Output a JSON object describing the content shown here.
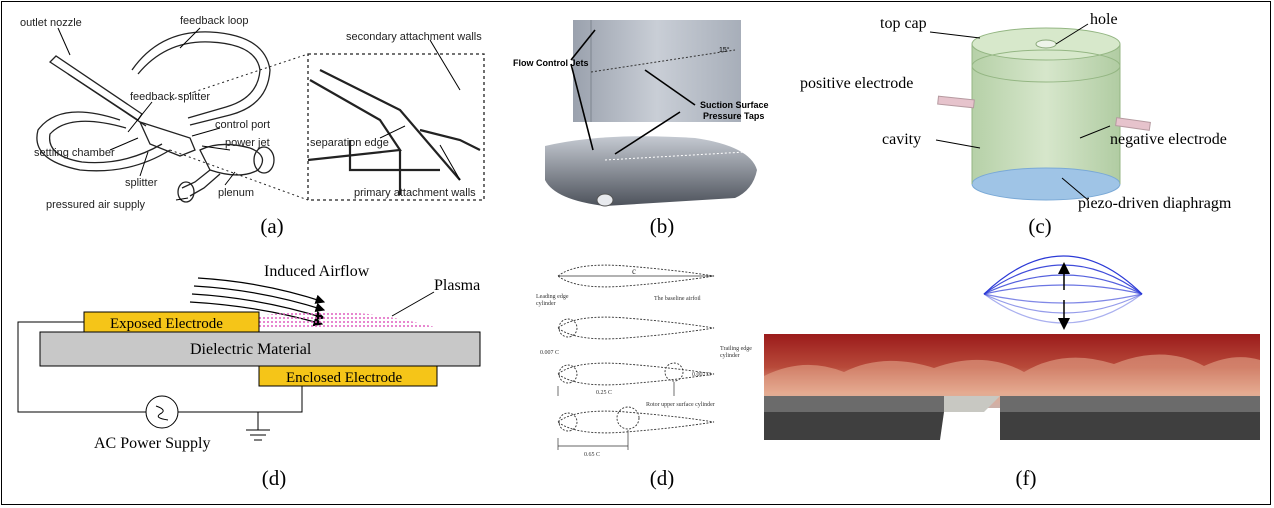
{
  "colors": {
    "electrode": "#f5c518",
    "dielectric": "#c8c8c8",
    "plasma": "#e060c0",
    "cylinder": "#b9d3a8",
    "diaphragm": "#9fc4e6",
    "flow_red": "#9b1b1b",
    "flow_light": "#e8b39a",
    "waveform": "#2b39d6",
    "wall": "#555555"
  },
  "panels": {
    "a": {
      "caption": "(a)",
      "labels": {
        "outlet_nozzle": "outlet nozzle",
        "feedback_loop": "feedback loop",
        "feedback_splitter": "feedback splitter",
        "control_port": "control port",
        "settling_chamber": "settling chamber",
        "power_jet": "power jet",
        "splitter": "splitter",
        "plenum": "plenum",
        "pressured_air_supply": "pressured air supply",
        "secondary_attachment_walls": "secondary attachment walls",
        "separation_edge": "separation edge",
        "primary_attachment_walls": "primary attachment walls"
      }
    },
    "b": {
      "caption": "(b)",
      "labels": {
        "flow_control_jets": "Flow Control Jets",
        "suction_surface_1": "Suction Surface",
        "suction_surface_2": "Pressure Taps",
        "angle": "15°"
      }
    },
    "c": {
      "caption": "(c)",
      "labels": {
        "top_cap": "top cap",
        "hole": "hole",
        "positive_electrode": "positive electrode",
        "negative_electrode": "negative electrode",
        "cavity": "cavity",
        "diaphragm": "piezo-driven diaphragm"
      }
    },
    "d1": {
      "caption": "(d)",
      "labels": {
        "induced_airflow": "Induced Airflow",
        "plasma": "Plasma",
        "exposed_electrode": "Exposed Electrode",
        "dielectric_material": "Dielectric Material",
        "enclosed_electrode": "Enclosed Electrode",
        "ac_power_supply": "AC Power Supply"
      }
    },
    "d2": {
      "caption": "(d)",
      "labels": {
        "c": "c",
        "leading_edge": "Leading edge",
        "cylinder": "cylinder",
        "baseline": "The baseline airfoil",
        "trailing_edge": "Trailing edge",
        "trailing_cyl": "cylinder",
        "dim1": "0.007 C",
        "dim2": "0.007 C",
        "dim3": "0.25 C",
        "rotor": "Rotor upper surface cylinder",
        "dim4": "0.65 C"
      }
    },
    "f": {
      "caption": "(f)"
    }
  }
}
